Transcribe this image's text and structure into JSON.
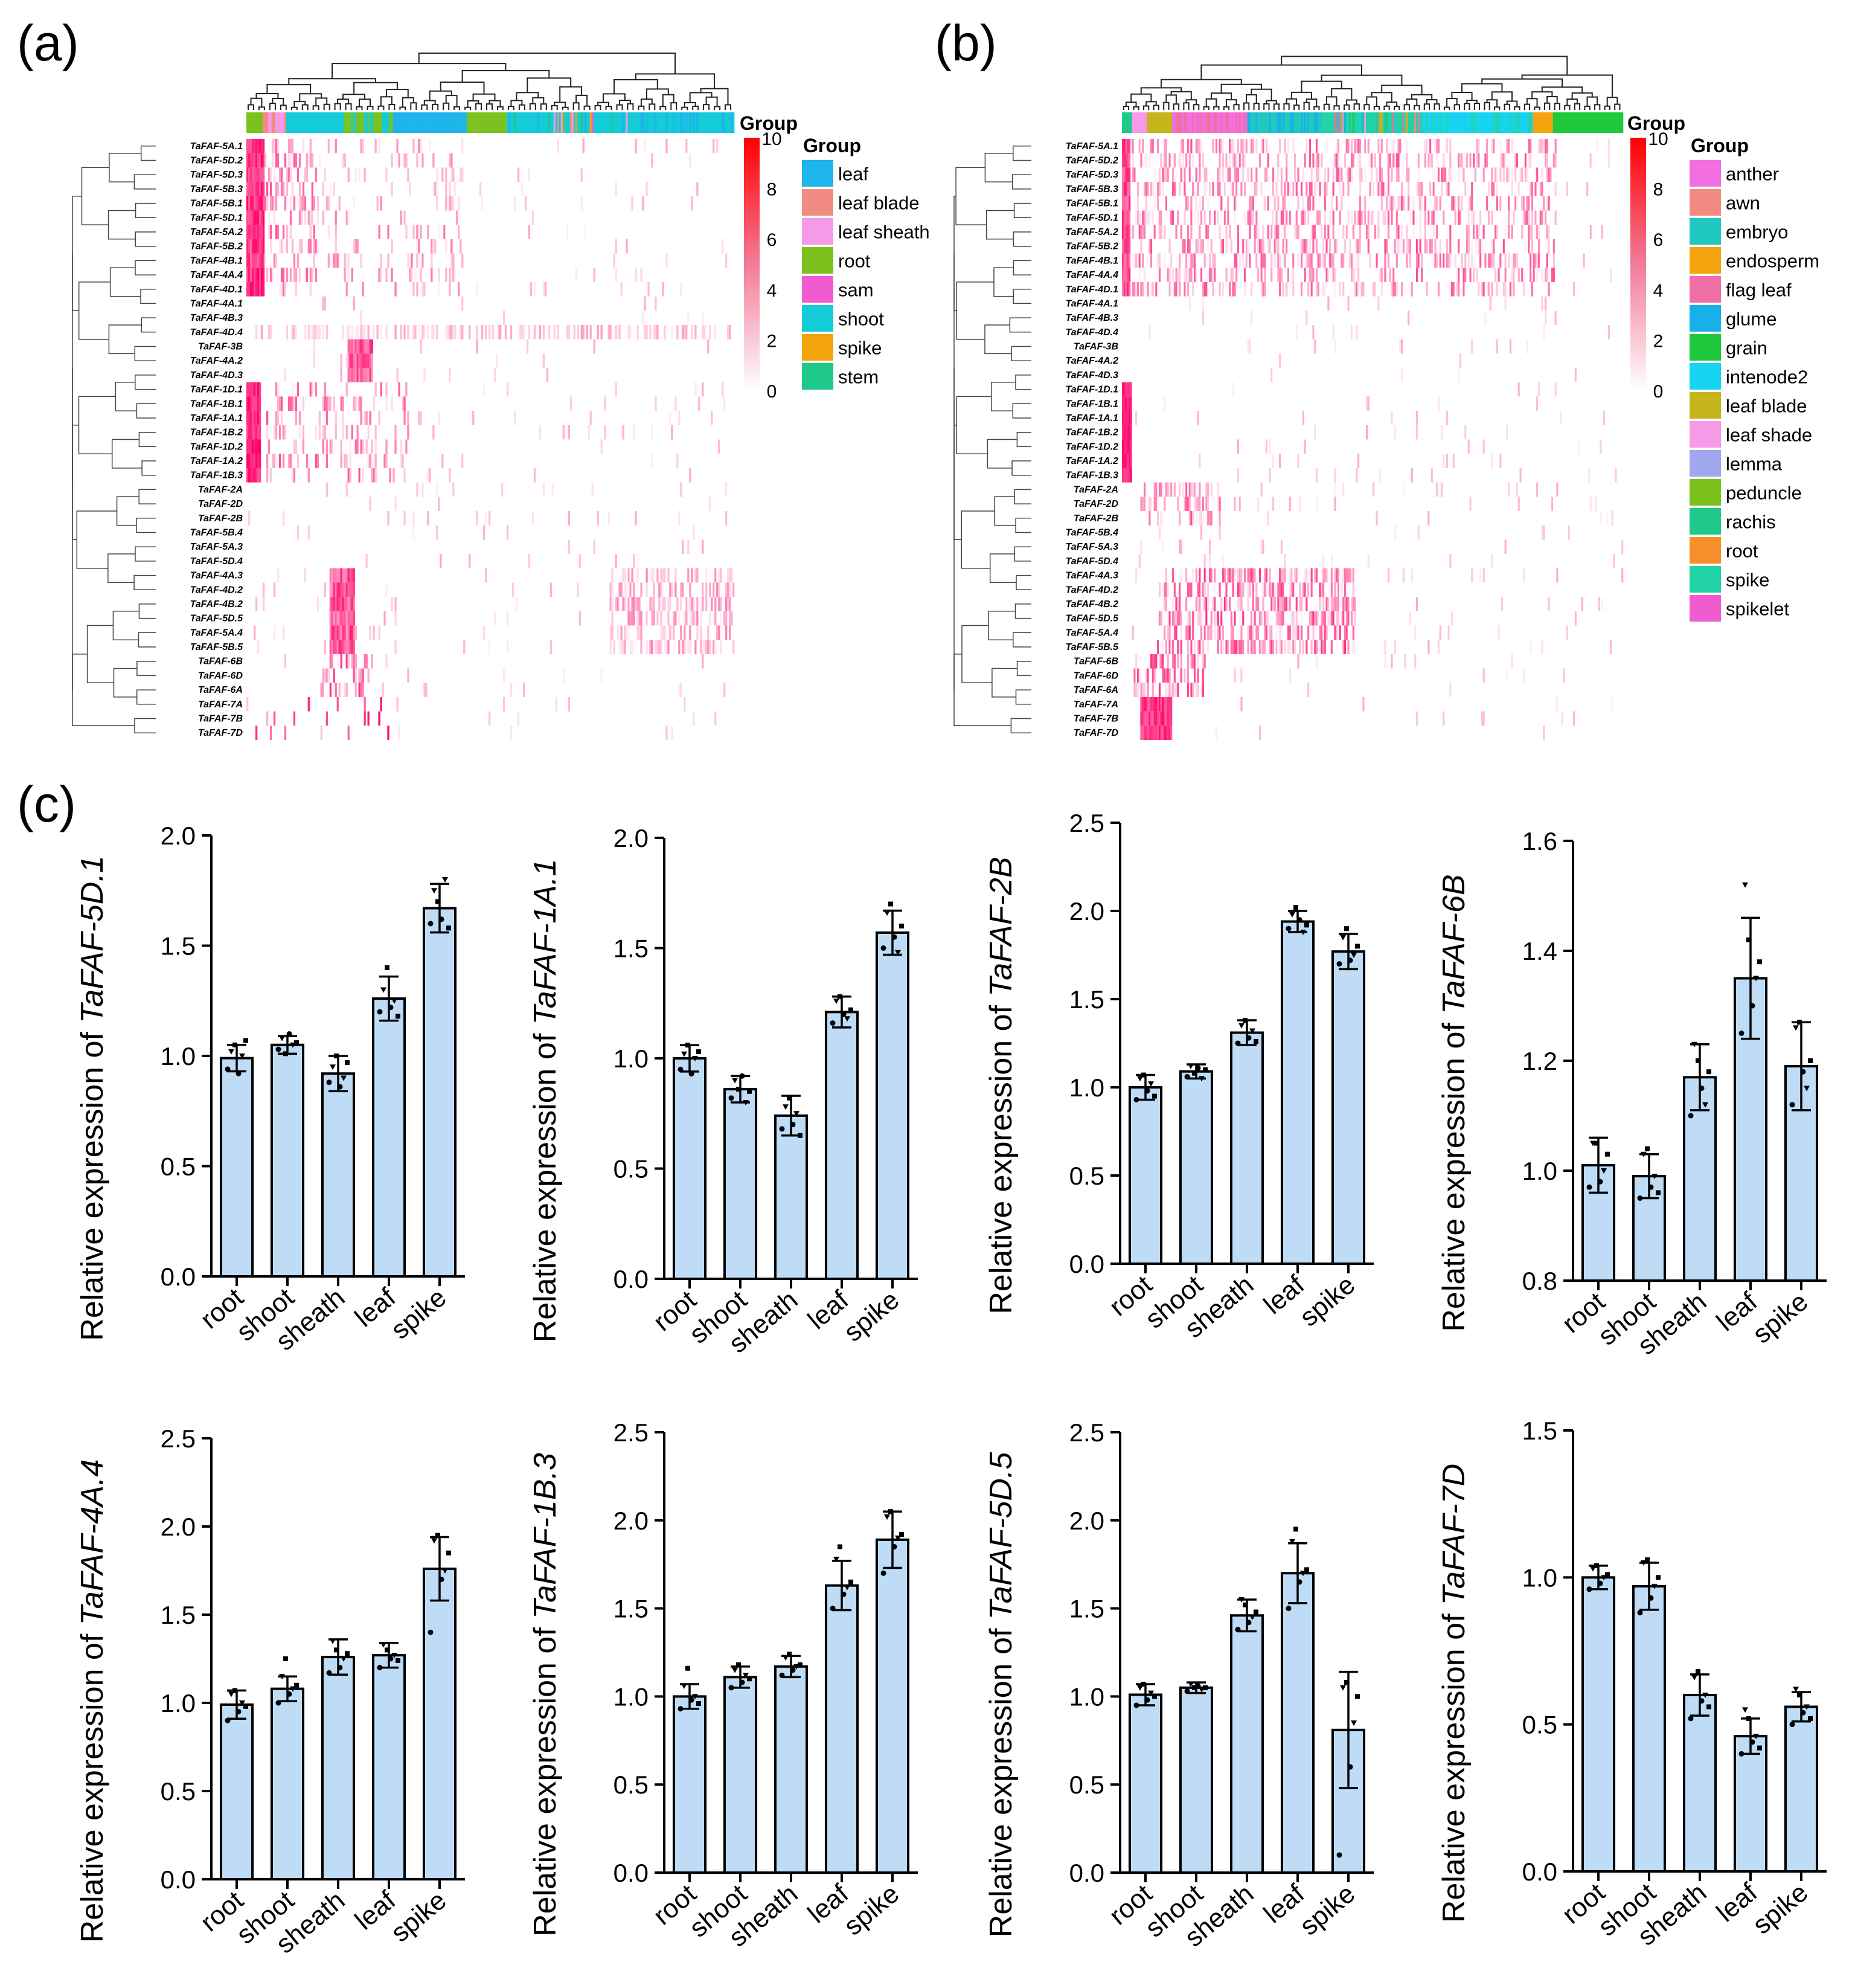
{
  "panels": {
    "a": "(a)",
    "b": "(b)",
    "c": "(c)"
  },
  "heatmap_a": {
    "colorbar_title": "Group",
    "legend_title": "Group",
    "scale_ticks": [
      0,
      2,
      4,
      6,
      8,
      10
    ],
    "genes": [
      "TaFAF-5A.1",
      "TaFAF-5D.2",
      "TaFAF-5D.3",
      "TaFAF-5B.3",
      "TaFAF-5B.1",
      "TaFAF-5D.1",
      "TaFAF-5A.2",
      "TaFAF-5B.2",
      "TaFAF-4B.1",
      "TaFAF-4A.4",
      "TaFAF-4D.1",
      "TaFAF-4A.1",
      "TaFAF-4B.3",
      "TaFAF-4D.4",
      "TaFAF-3B",
      "TaFAF-4A.2",
      "TaFAF-4D.3",
      "TaFAF-1D.1",
      "TaFAF-1B.1",
      "TaFAF-1A.1",
      "TaFAF-1B.2",
      "TaFAF-1D.2",
      "TaFAF-1A.2",
      "TaFAF-1B.3",
      "TaFAF-2A",
      "TaFAF-2D",
      "TaFAF-2B",
      "TaFAF-5B.4",
      "TaFAF-5A.3",
      "TaFAF-5D.4",
      "TaFAF-4A.3",
      "TaFAF-4D.2",
      "TaFAF-4B.2",
      "TaFAF-5D.5",
      "TaFAF-5A.4",
      "TaFAF-5B.5",
      "TaFAF-6B",
      "TaFAF-6D",
      "TaFAF-6A",
      "TaFAF-7A",
      "TaFAF-7B",
      "TaFAF-7D"
    ],
    "groups": [
      {
        "name": "leaf",
        "color": "#1fb4ea"
      },
      {
        "name": "leaf blade",
        "color": "#f28b82"
      },
      {
        "name": "leaf sheath",
        "color": "#f59ae6"
      },
      {
        "name": "root",
        "color": "#7cc21e"
      },
      {
        "name": "sam",
        "color": "#f05ccf"
      },
      {
        "name": "shoot",
        "color": "#14cbd8"
      },
      {
        "name": "spike",
        "color": "#f4a40c"
      },
      {
        "name": "stem",
        "color": "#1ec98a"
      }
    ]
  },
  "heatmap_b": {
    "colorbar_title": "Group",
    "legend_title": "Group",
    "scale_ticks": [
      0,
      2,
      4,
      6,
      8,
      10
    ],
    "genes": [
      "TaFAF-5A.1",
      "TaFAF-5D.2",
      "TaFAF-5D.3",
      "TaFAF-5B.3",
      "TaFAF-5B.1",
      "TaFAF-5D.1",
      "TaFAF-5A.2",
      "TaFAF-5B.2",
      "TaFAF-4B.1",
      "TaFAF-4A.4",
      "TaFAF-4D.1",
      "TaFAF-4A.1",
      "TaFAF-4B.3",
      "TaFAF-4D.4",
      "TaFAF-3B",
      "TaFAF-4A.2",
      "TaFAF-4D.3",
      "TaFAF-1D.1",
      "TaFAF-1B.1",
      "TaFAF-1A.1",
      "TaFAF-1B.2",
      "TaFAF-1D.2",
      "TaFAF-1A.2",
      "TaFAF-1B.3",
      "TaFAF-2A",
      "TaFAF-2D",
      "TaFAF-2B",
      "TaFAF-5B.4",
      "TaFAF-5A.3",
      "TaFAF-5D.4",
      "TaFAF-4A.3",
      "TaFAF-4D.2",
      "TaFAF-4B.2",
      "TaFAF-5D.5",
      "TaFAF-5A.4",
      "TaFAF-5B.5",
      "TaFAF-6B",
      "TaFAF-6D",
      "TaFAF-6A",
      "TaFAF-7A",
      "TaFAF-7B",
      "TaFAF-7D"
    ],
    "groups": [
      {
        "name": "anther",
        "color": "#f36ee0"
      },
      {
        "name": "awn",
        "color": "#f28b82"
      },
      {
        "name": "embryo",
        "color": "#20c9c0"
      },
      {
        "name": "endosperm",
        "color": "#f4a40c"
      },
      {
        "name": "flag leaf",
        "color": "#f06fa8"
      },
      {
        "name": "glume",
        "color": "#18b0e8"
      },
      {
        "name": "grain",
        "color": "#1ec93c"
      },
      {
        "name": "intenode2",
        "color": "#17d4f0"
      },
      {
        "name": "leaf blade",
        "color": "#c4b51a"
      },
      {
        "name": "leaf shade",
        "color": "#f59ae6"
      },
      {
        "name": "lemma",
        "color": "#a0a8f0"
      },
      {
        "name": "peduncle",
        "color": "#7cc21e"
      },
      {
        "name": "rachis",
        "color": "#1ec98a"
      },
      {
        "name": "root",
        "color": "#f7902c"
      },
      {
        "name": "spike",
        "color": "#22d3a8"
      },
      {
        "name": "spikelet",
        "color": "#f05ccf"
      }
    ]
  },
  "colors": {
    "bar_fill": "#bfdcf6",
    "heat_high": "#ff0000",
    "heat_low": "#ffffff"
  },
  "chart_data": [
    {
      "type": "bar",
      "ylabel_prefix": "Relative expression of ",
      "gene": "TaFAF-5D.1",
      "categories": [
        "root",
        "shoot",
        "sheath",
        "leaf",
        "spike"
      ],
      "values": [
        0.99,
        1.05,
        0.92,
        1.26,
        1.67
      ],
      "errors": [
        0.06,
        0.04,
        0.08,
        0.1,
        0.11
      ],
      "ylim": [
        0,
        2.0
      ],
      "yticks": [
        "0.0",
        "0.5",
        "1.0",
        "1.5",
        "2.0"
      ],
      "points": [
        [
          0.94,
          1.02,
          1.05,
          0.92,
          1.0,
          1.07
        ],
        [
          1.03,
          1.08,
          1.01,
          1.1,
          1.05,
          1.06
        ],
        [
          0.88,
          0.95,
          1.0,
          0.86,
          0.9,
          0.97
        ],
        [
          1.2,
          1.3,
          1.4,
          1.22,
          1.25,
          1.18
        ],
        [
          1.6,
          1.75,
          1.7,
          1.62,
          1.8,
          1.58
        ]
      ]
    },
    {
      "type": "bar",
      "ylabel_prefix": "Relative expression of ",
      "gene": "TaFAF-1A.1",
      "categories": [
        "root",
        "shoot",
        "sheath",
        "leaf",
        "spike"
      ],
      "values": [
        1.0,
        0.86,
        0.74,
        1.21,
        1.57
      ],
      "errors": [
        0.06,
        0.06,
        0.09,
        0.07,
        0.1
      ],
      "ylim": [
        0,
        2.0
      ],
      "yticks": [
        "0.0",
        "0.5",
        "1.0",
        "1.5",
        "2.0"
      ],
      "points": [
        [
          0.95,
          1.02,
          1.06,
          0.93,
          1.0,
          1.03
        ],
        [
          0.82,
          0.9,
          0.86,
          0.92,
          0.8,
          0.85
        ],
        [
          0.68,
          0.78,
          0.82,
          0.7,
          0.75,
          0.65
        ],
        [
          1.16,
          1.26,
          1.28,
          1.2,
          1.18,
          1.22
        ],
        [
          1.5,
          1.66,
          1.7,
          1.55,
          1.48,
          1.6
        ]
      ]
    },
    {
      "type": "bar",
      "ylabel_prefix": "Relative expression of ",
      "gene": "TaFAF-2B",
      "categories": [
        "root",
        "shoot",
        "sheath",
        "leaf",
        "spike"
      ],
      "values": [
        1.0,
        1.09,
        1.31,
        1.94,
        1.77
      ],
      "errors": [
        0.07,
        0.04,
        0.07,
        0.06,
        0.1
      ],
      "ylim": [
        0,
        2.5
      ],
      "yticks": [
        "0.0",
        "0.5",
        "1.0",
        "1.5",
        "2.0",
        "2.5"
      ],
      "points": [
        [
          0.93,
          1.05,
          1.07,
          0.98,
          1.02,
          0.95
        ],
        [
          1.06,
          1.12,
          1.08,
          1.11,
          1.05,
          1.1
        ],
        [
          1.25,
          1.35,
          1.38,
          1.28,
          1.32,
          1.26
        ],
        [
          1.9,
          1.98,
          2.02,
          1.95,
          1.88,
          1.92
        ],
        [
          1.7,
          1.85,
          1.9,
          1.72,
          1.75,
          1.8
        ]
      ]
    },
    {
      "type": "bar",
      "ylabel_prefix": "Relative expression of ",
      "gene": "TaFAF-6B",
      "categories": [
        "root",
        "shoot",
        "sheath",
        "leaf",
        "spike"
      ],
      "values": [
        1.01,
        0.99,
        1.17,
        1.35,
        1.19
      ],
      "errors": [
        0.05,
        0.04,
        0.06,
        0.11,
        0.08
      ],
      "ylim": [
        0.8,
        1.6
      ],
      "yticks": [
        "0.8",
        "1.0",
        "1.2",
        "1.4",
        "1.6"
      ],
      "points": [
        [
          0.97,
          1.05,
          1.05,
          0.98,
          1.0,
          1.03
        ],
        [
          0.95,
          1.03,
          1.04,
          0.97,
          0.99,
          0.96
        ],
        [
          1.1,
          1.23,
          1.2,
          1.15,
          1.12,
          1.18
        ],
        [
          1.25,
          1.52,
          1.42,
          1.3,
          1.35,
          1.38
        ],
        [
          1.12,
          1.26,
          1.27,
          1.18,
          1.15,
          1.2
        ]
      ]
    },
    {
      "type": "bar",
      "ylabel_prefix": "Relative expression of ",
      "gene": "TaFAF-4A.4",
      "categories": [
        "root",
        "shoot",
        "sheath",
        "leaf",
        "spike"
      ],
      "values": [
        0.99,
        1.08,
        1.26,
        1.27,
        1.76
      ],
      "errors": [
        0.08,
        0.07,
        0.1,
        0.07,
        0.18
      ],
      "ylim": [
        0,
        2.5
      ],
      "yticks": [
        "0.0",
        "0.5",
        "1.0",
        "1.5",
        "2.0",
        "2.5"
      ],
      "points": [
        [
          0.9,
          1.05,
          1.07,
          0.95,
          1.0,
          0.98
        ],
        [
          1.0,
          1.15,
          1.25,
          1.05,
          1.08,
          1.1
        ],
        [
          1.17,
          1.35,
          1.3,
          1.2,
          1.25,
          1.28
        ],
        [
          1.2,
          1.33,
          1.3,
          1.25,
          1.27,
          1.24
        ],
        [
          1.4,
          1.92,
          1.95,
          1.7,
          1.75,
          1.85
        ]
      ]
    },
    {
      "type": "bar",
      "ylabel_prefix": "Relative expression of ",
      "gene": "TaFAF-1B.3",
      "categories": [
        "root",
        "shoot",
        "sheath",
        "leaf",
        "spike"
      ],
      "values": [
        1.0,
        1.11,
        1.17,
        1.63,
        1.89
      ],
      "errors": [
        0.07,
        0.06,
        0.06,
        0.14,
        0.16
      ],
      "ylim": [
        0,
        2.5
      ],
      "yticks": [
        "0.0",
        "0.5",
        "1.0",
        "1.5",
        "2.0",
        "2.5"
      ],
      "points": [
        [
          0.93,
          1.06,
          1.16,
          0.98,
          1.0,
          0.96
        ],
        [
          1.05,
          1.15,
          1.18,
          1.08,
          1.12,
          1.1
        ],
        [
          1.12,
          1.22,
          1.24,
          1.15,
          1.17,
          1.18
        ],
        [
          1.5,
          1.78,
          1.85,
          1.58,
          1.62,
          1.65
        ],
        [
          1.7,
          2.02,
          2.05,
          1.85,
          1.9,
          1.92
        ]
      ]
    },
    {
      "type": "bar",
      "ylabel_prefix": "Relative expression of ",
      "gene": "TaFAF-5D.5",
      "categories": [
        "root",
        "shoot",
        "sheath",
        "leaf",
        "spike"
      ],
      "values": [
        1.01,
        1.05,
        1.46,
        1.7,
        0.81
      ],
      "errors": [
        0.06,
        0.03,
        0.09,
        0.17,
        0.33
      ],
      "ylim": [
        0,
        2.5
      ],
      "yticks": [
        "0.0",
        "0.5",
        "1.0",
        "1.5",
        "2.0",
        "2.5"
      ],
      "points": [
        [
          0.95,
          1.05,
          1.07,
          0.98,
          1.02,
          1.0
        ],
        [
          1.03,
          1.07,
          1.05,
          1.06,
          1.04,
          1.05
        ],
        [
          1.38,
          1.55,
          1.52,
          1.42,
          1.45,
          1.48
        ],
        [
          1.5,
          1.88,
          1.95,
          1.65,
          1.7,
          1.72
        ],
        [
          0.1,
          1.05,
          1.08,
          0.6,
          0.85,
          1.0
        ]
      ]
    },
    {
      "type": "bar",
      "ylabel_prefix": "Relative expression of ",
      "gene": "TaFAF-7D",
      "categories": [
        "root",
        "shoot",
        "sheath",
        "leaf",
        "spike"
      ],
      "values": [
        1.0,
        0.97,
        0.6,
        0.46,
        0.56
      ],
      "errors": [
        0.04,
        0.08,
        0.07,
        0.06,
        0.05
      ],
      "ylim": [
        0,
        1.5
      ],
      "yticks": [
        "0.0",
        "0.5",
        "1.0",
        "1.5"
      ],
      "points": [
        [
          0.96,
          1.03,
          1.04,
          0.98,
          1.0,
          1.01
        ],
        [
          0.88,
          1.05,
          1.06,
          0.93,
          0.97,
          1.0
        ],
        [
          0.52,
          0.66,
          0.68,
          0.58,
          0.6,
          0.56
        ],
        [
          0.4,
          0.55,
          0.52,
          0.44,
          0.46,
          0.42
        ],
        [
          0.5,
          0.62,
          0.6,
          0.54,
          0.56,
          0.52
        ]
      ]
    }
  ]
}
